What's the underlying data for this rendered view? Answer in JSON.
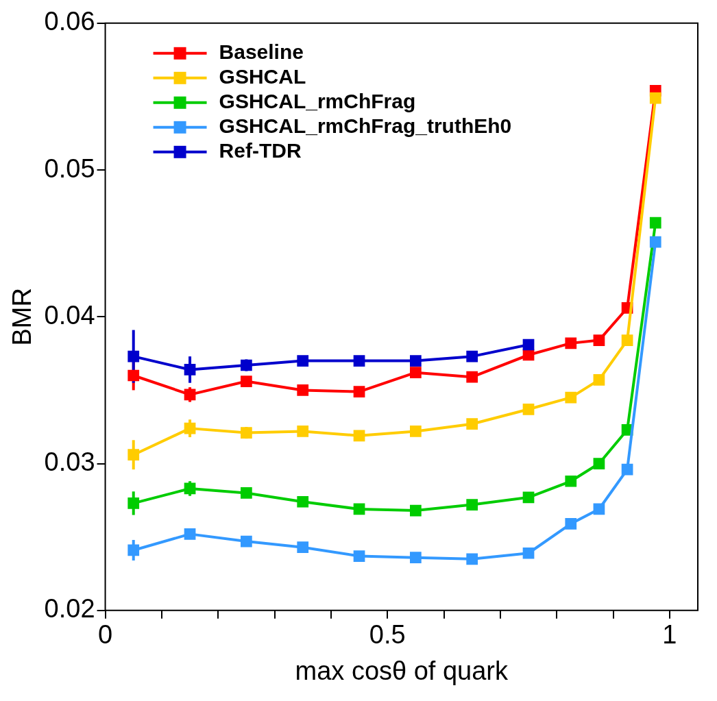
{
  "chart_data": {
    "type": "line",
    "xlabel": "max cosθ of quark",
    "ylabel": "BMR",
    "xlim": [
      0,
      1.05
    ],
    "xticks": [
      0,
      {
        "value": 0.1,
        "label": null
      },
      {
        "value": 0.2,
        "label": null
      },
      {
        "value": 0.3,
        "label": null
      },
      {
        "value": 0.4,
        "label": null
      },
      0.5,
      {
        "value": 0.6,
        "label": null
      },
      {
        "value": 0.7,
        "label": null
      },
      {
        "value": 0.8,
        "label": null
      },
      {
        "value": 0.9,
        "label": null
      },
      1
    ],
    "ylim": [
      0.02,
      0.06
    ],
    "yticks": [
      0.02,
      0.03,
      0.04,
      0.05,
      0.06
    ],
    "legend": "top left",
    "marker": "square",
    "line_style": "solid",
    "grid": false,
    "series": [
      {
        "name": "Baseline",
        "color": "#ff0000",
        "x": [
          0.05,
          0.15,
          0.25,
          0.35,
          0.45,
          0.55,
          0.65,
          0.75,
          0.825,
          0.875,
          0.925,
          0.975
        ],
        "values": [
          0.036,
          0.0347,
          0.0356,
          0.035,
          0.0349,
          0.0362,
          0.0359,
          0.0374,
          0.0382,
          0.0384,
          0.0406,
          0.0554
        ],
        "errors": [
          0.001,
          0.0005,
          0.0003,
          0.0003,
          0.0002,
          0.0002,
          0.0002,
          0.0002,
          0.0003,
          0.0003,
          0.0003,
          0.0003
        ]
      },
      {
        "name": "GSHCAL",
        "color": "#ffcc00",
        "x": [
          0.05,
          0.15,
          0.25,
          0.35,
          0.45,
          0.55,
          0.65,
          0.75,
          0.825,
          0.875,
          0.925,
          0.975
        ],
        "values": [
          0.0306,
          0.0324,
          0.0321,
          0.0322,
          0.0319,
          0.0322,
          0.0327,
          0.0337,
          0.0345,
          0.0357,
          0.0384,
          0.0549
        ],
        "errors": [
          0.001,
          0.0006,
          0.0004,
          0.0003,
          0.0002,
          0.0002,
          0.0002,
          0.0002,
          0.0003,
          0.0003,
          0.0003,
          0.0003
        ]
      },
      {
        "name": "GSHCAL_rmChFrag",
        "color": "#00cc00",
        "x": [
          0.05,
          0.15,
          0.25,
          0.35,
          0.45,
          0.55,
          0.65,
          0.75,
          0.825,
          0.875,
          0.925,
          0.975
        ],
        "values": [
          0.0273,
          0.0283,
          0.028,
          0.0274,
          0.0269,
          0.0268,
          0.0272,
          0.0277,
          0.0288,
          0.03,
          0.0323,
          0.0464
        ],
        "errors": [
          0.0008,
          0.0005,
          0.0003,
          0.0002,
          0.0002,
          0.0002,
          0.0002,
          0.0002,
          0.0002,
          0.0002,
          0.0002,
          0.0003
        ]
      },
      {
        "name": "GSHCAL_rmChFrag_truthEh0",
        "color": "#3399ff",
        "x": [
          0.05,
          0.15,
          0.25,
          0.35,
          0.45,
          0.55,
          0.65,
          0.75,
          0.825,
          0.875,
          0.925,
          0.975
        ],
        "values": [
          0.0241,
          0.0252,
          0.0247,
          0.0243,
          0.0237,
          0.0236,
          0.0235,
          0.0239,
          0.0259,
          0.0269,
          0.0296,
          0.0451
        ],
        "errors": [
          0.0007,
          0.0003,
          0.0002,
          0.0002,
          0.0002,
          0.0002,
          0.0002,
          0.0002,
          0.0002,
          0.0002,
          0.0002,
          0.0003
        ]
      },
      {
        "name": "Ref-TDR",
        "color": "#0000cc",
        "x": [
          0.05,
          0.15,
          0.25,
          0.35,
          0.45,
          0.55,
          0.65,
          0.75
        ],
        "values": [
          0.0373,
          0.0364,
          0.0367,
          0.037,
          0.037,
          0.037,
          0.0373,
          0.0381
        ],
        "errors": [
          0.0018,
          0.0009,
          0.0004,
          0.0002,
          0.0002,
          0.0002,
          0.0002,
          0.0002
        ]
      }
    ]
  }
}
